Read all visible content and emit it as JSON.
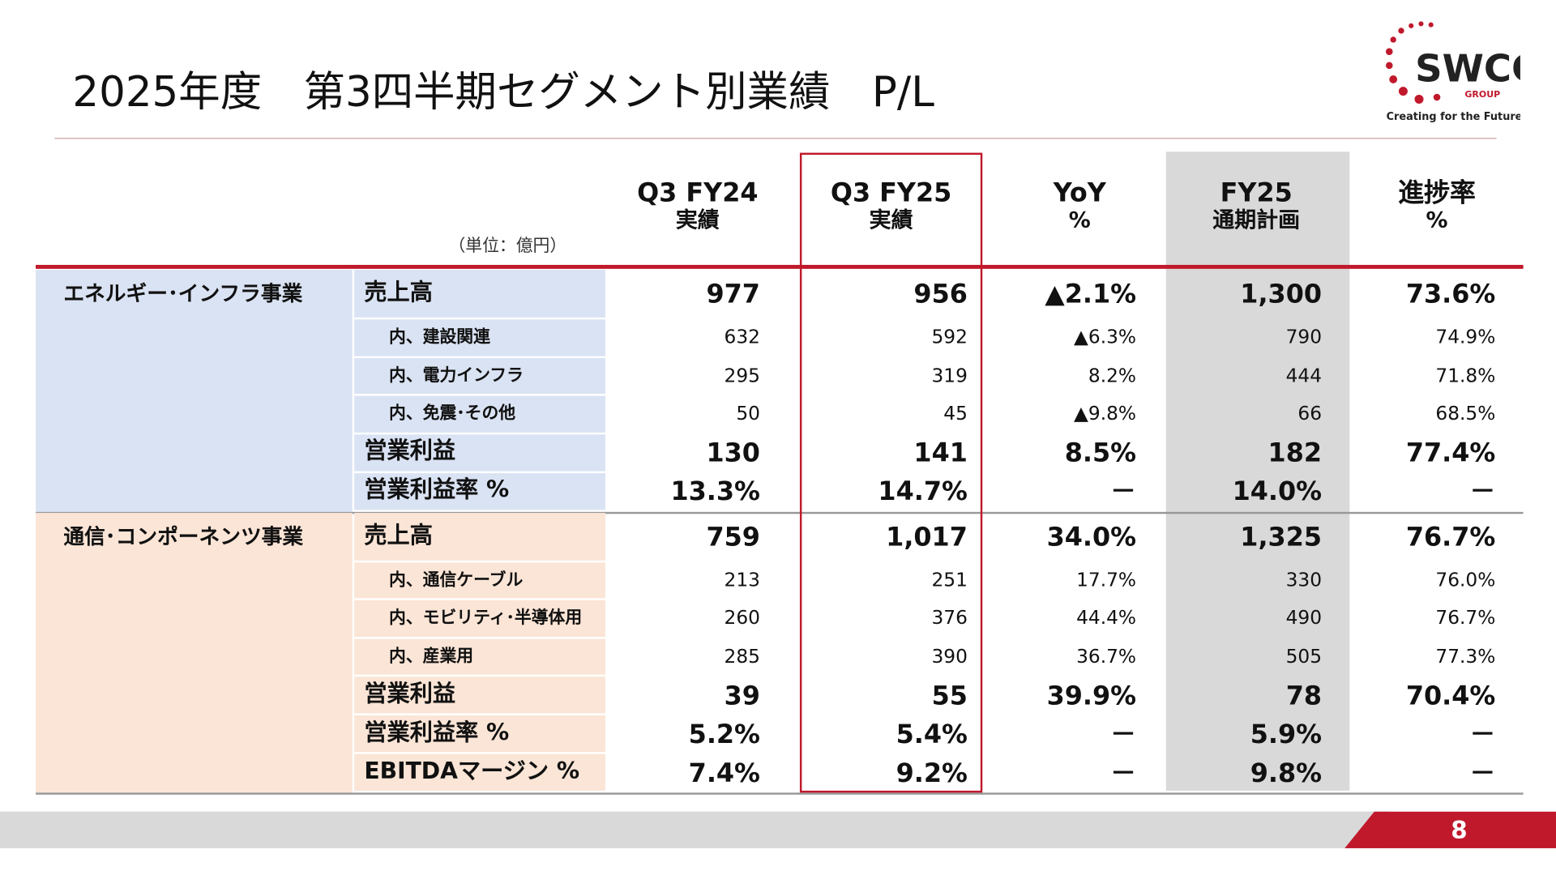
{
  "header": {
    "title": "2025年度　第3四半期セグメント別業績　P/L",
    "logo": {
      "name": "SWCC",
      "group": "GROUP",
      "tagline": "Creating  for the Future"
    }
  },
  "table": {
    "unit": "（単位：億円）",
    "columns": [
      [
        "Q3 FY24",
        "実績"
      ],
      [
        "Q3 FY25",
        "実績"
      ],
      [
        "YoY",
        "%"
      ],
      [
        "FY25",
        "通期計画"
      ],
      [
        "進捗率",
        "%"
      ]
    ],
    "segments": [
      {
        "name": "エネルギー･インフラ事業",
        "rows": [
          {
            "label": "売上高",
            "cells": [
              "977",
              "956",
              "▲2.1%",
              "1,300",
              "73.6%"
            ],
            "breakdown": [
              {
                "label": "内、建設関連",
                "cells": [
                  "632",
                  "592",
                  "▲6.3%",
                  "790",
                  "74.9%"
                ]
              },
              {
                "label": "内、電力インフラ",
                "cells": [
                  "295",
                  "319",
                  "8.2%",
                  "444",
                  "71.8%"
                ]
              },
              {
                "label": "内、免震･その他",
                "cells": [
                  "50",
                  "45",
                  "▲9.8%",
                  "66",
                  "68.5%"
                ]
              }
            ]
          },
          {
            "label": "営業利益",
            "cells": [
              "130",
              "141",
              "8.5%",
              "182",
              "77.4%"
            ]
          },
          {
            "label": "営業利益率 %",
            "cells": [
              "13.3%",
              "14.7%",
              "－",
              "14.0%",
              "－"
            ]
          }
        ]
      },
      {
        "name": "通信･コンポーネンツ事業",
        "rows": [
          {
            "label": "売上高",
            "cells": [
              "759",
              "1,017",
              "34.0%",
              "1,325",
              "76.7%"
            ],
            "breakdown": [
              {
                "label": "内、通信ケーブル",
                "cells": [
                  "213",
                  "251",
                  "17.7%",
                  "330",
                  "76.0%"
                ]
              },
              {
                "label": "内、モビリティ･半導体用",
                "cells": [
                  "260",
                  "376",
                  "44.4%",
                  "490",
                  "76.7%"
                ]
              },
              {
                "label": "内、産業用",
                "cells": [
                  "285",
                  "390",
                  "36.7%",
                  "505",
                  "77.3%"
                ]
              }
            ]
          },
          {
            "label": "営業利益",
            "cells": [
              "39",
              "55",
              "39.9%",
              "78",
              "70.4%"
            ]
          },
          {
            "label": "営業利益率 %",
            "cells": [
              "5.2%",
              "5.4%",
              "－",
              "5.9%",
              "－"
            ]
          },
          {
            "label": "EBITDAマージン %",
            "cells": [
              "7.4%",
              "9.2%",
              "－",
              "9.8%",
              "－"
            ]
          }
        ]
      }
    ]
  },
  "footer": {
    "page": "8"
  }
}
